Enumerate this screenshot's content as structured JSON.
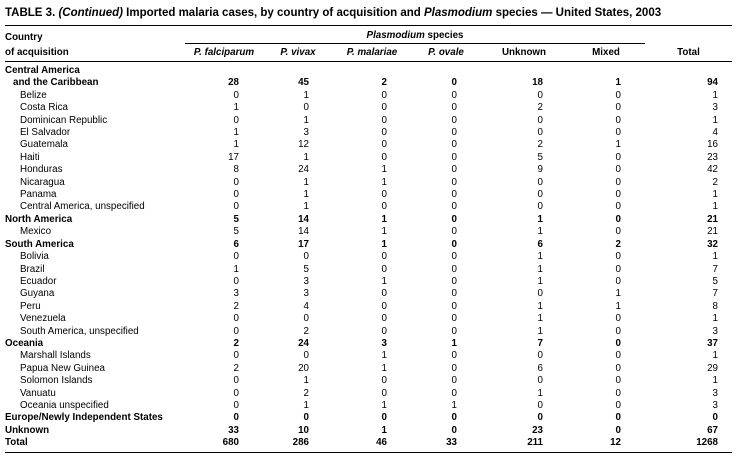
{
  "title": {
    "label": "TABLE 3. ",
    "continued": "(Continued)",
    "text1": " Imported malaria cases, by country of acquisition and ",
    "species_word": "Plasmodium",
    "text2": " species — United States, 2003"
  },
  "header": {
    "country_line1": "Country",
    "country_line2": "of acquisition",
    "group_italic": "Plasmodium",
    "group_rest": " species",
    "columns": [
      "P. falciparum",
      "P. vivax",
      "P. malariae",
      "P. ovale",
      "Unknown",
      "Mixed",
      "Total"
    ]
  },
  "table": {
    "rows": [
      {
        "label": "Central America",
        "indent": "i0",
        "bold": true,
        "values": null
      },
      {
        "label": "and the Caribbean",
        "indent": "i1",
        "bold": true,
        "values": [
          28,
          45,
          2,
          0,
          18,
          1,
          94
        ]
      },
      {
        "label": "Belize",
        "indent": "i2",
        "bold": false,
        "values": [
          0,
          1,
          0,
          0,
          0,
          0,
          1
        ]
      },
      {
        "label": "Costa Rica",
        "indent": "i2",
        "bold": false,
        "values": [
          1,
          0,
          0,
          0,
          2,
          0,
          3
        ]
      },
      {
        "label": "Dominican Republic",
        "indent": "i2",
        "bold": false,
        "values": [
          0,
          1,
          0,
          0,
          0,
          0,
          1
        ]
      },
      {
        "label": "El Salvador",
        "indent": "i2",
        "bold": false,
        "values": [
          1,
          3,
          0,
          0,
          0,
          0,
          4
        ]
      },
      {
        "label": "Guatemala",
        "indent": "i2",
        "bold": false,
        "values": [
          1,
          12,
          0,
          0,
          2,
          1,
          16
        ]
      },
      {
        "label": "Haiti",
        "indent": "i2",
        "bold": false,
        "values": [
          17,
          1,
          0,
          0,
          5,
          0,
          23
        ]
      },
      {
        "label": "Honduras",
        "indent": "i2",
        "bold": false,
        "values": [
          8,
          24,
          1,
          0,
          9,
          0,
          42
        ]
      },
      {
        "label": "Nicaragua",
        "indent": "i2",
        "bold": false,
        "values": [
          0,
          1,
          1,
          0,
          0,
          0,
          2
        ]
      },
      {
        "label": "Panama",
        "indent": "i2",
        "bold": false,
        "values": [
          0,
          1,
          0,
          0,
          0,
          0,
          1
        ]
      },
      {
        "label": "Central America, unspecified",
        "indent": "i2",
        "bold": false,
        "values": [
          0,
          1,
          0,
          0,
          0,
          0,
          1
        ]
      },
      {
        "label": "North America",
        "indent": "i0",
        "bold": true,
        "values": [
          5,
          14,
          1,
          0,
          1,
          0,
          21
        ]
      },
      {
        "label": "Mexico",
        "indent": "i2",
        "bold": false,
        "values": [
          5,
          14,
          1,
          0,
          1,
          0,
          21
        ]
      },
      {
        "label": "South America",
        "indent": "i0",
        "bold": true,
        "values": [
          6,
          17,
          1,
          0,
          6,
          2,
          32
        ]
      },
      {
        "label": "Bolivia",
        "indent": "i2",
        "bold": false,
        "values": [
          0,
          0,
          0,
          0,
          1,
          0,
          1
        ]
      },
      {
        "label": "Brazil",
        "indent": "i2",
        "bold": false,
        "values": [
          1,
          5,
          0,
          0,
          1,
          0,
          7
        ]
      },
      {
        "label": "Ecuador",
        "indent": "i2",
        "bold": false,
        "values": [
          0,
          3,
          1,
          0,
          1,
          0,
          5
        ]
      },
      {
        "label": "Guyana",
        "indent": "i2",
        "bold": false,
        "values": [
          3,
          3,
          0,
          0,
          0,
          1,
          7
        ]
      },
      {
        "label": "Peru",
        "indent": "i2",
        "bold": false,
        "values": [
          2,
          4,
          0,
          0,
          1,
          1,
          8
        ]
      },
      {
        "label": "Venezuela",
        "indent": "i2",
        "bold": false,
        "values": [
          0,
          0,
          0,
          0,
          1,
          0,
          1
        ]
      },
      {
        "label": "South America, unspecified",
        "indent": "i2",
        "bold": false,
        "values": [
          0,
          2,
          0,
          0,
          1,
          0,
          3
        ]
      },
      {
        "label": "Oceania",
        "indent": "i0",
        "bold": true,
        "values": [
          2,
          24,
          3,
          1,
          7,
          0,
          37
        ]
      },
      {
        "label": "Marshall Islands",
        "indent": "i2",
        "bold": false,
        "values": [
          0,
          0,
          1,
          0,
          0,
          0,
          1
        ]
      },
      {
        "label": "Papua New Guinea",
        "indent": "i2",
        "bold": false,
        "values": [
          2,
          20,
          1,
          0,
          6,
          0,
          29
        ]
      },
      {
        "label": "Solomon Islands",
        "indent": "i2",
        "bold": false,
        "values": [
          0,
          1,
          0,
          0,
          0,
          0,
          1
        ]
      },
      {
        "label": "Vanuatu",
        "indent": "i2",
        "bold": false,
        "values": [
          0,
          2,
          0,
          0,
          1,
          0,
          3
        ]
      },
      {
        "label": "Oceania unspecified",
        "indent": "i2",
        "bold": false,
        "values": [
          0,
          1,
          1,
          1,
          0,
          0,
          3
        ]
      },
      {
        "label": "Europe/Newly Independent States",
        "indent": "i0",
        "bold": true,
        "values": [
          0,
          0,
          0,
          0,
          0,
          0,
          0
        ]
      },
      {
        "label": "Unknown",
        "indent": "i0",
        "bold": true,
        "values": [
          33,
          10,
          1,
          0,
          23,
          0,
          67
        ]
      },
      {
        "label": "Total",
        "indent": "i0",
        "bold": true,
        "values": [
          680,
          286,
          46,
          33,
          211,
          12,
          1268
        ]
      }
    ]
  }
}
